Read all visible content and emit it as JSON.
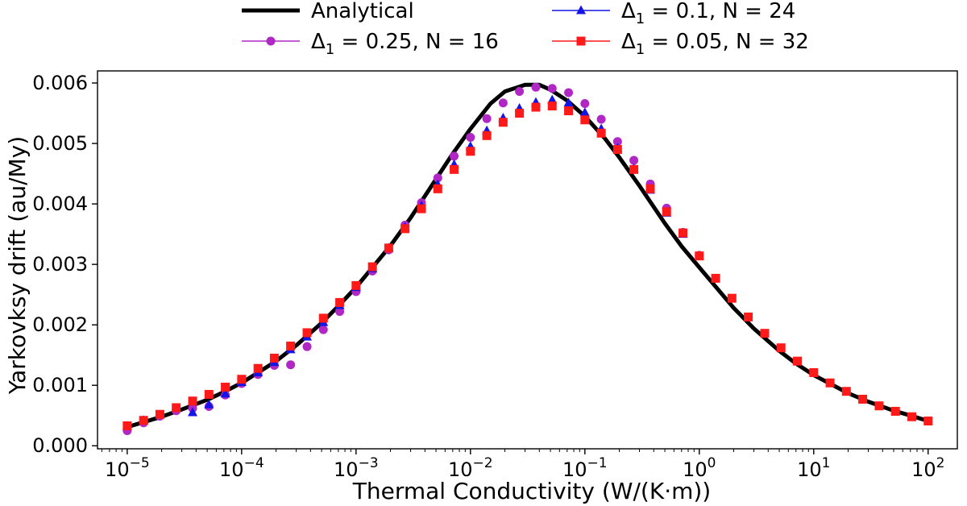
{
  "chart_data": {
    "type": "line",
    "xlabel": "Thermal Conductivity (W/(K·m))",
    "ylabel": "Yarkovksy drift (au/My)",
    "xscale": "log",
    "xlim": [
      5.5e-06,
      180
    ],
    "ylim": [
      -5e-05,
      0.0062
    ],
    "xticks": [
      {
        "value": 1e-05,
        "base": "10",
        "exp": "−5"
      },
      {
        "value": 0.0001,
        "base": "10",
        "exp": "−4"
      },
      {
        "value": 0.001,
        "base": "10",
        "exp": "−3"
      },
      {
        "value": 0.01,
        "base": "10",
        "exp": "−2"
      },
      {
        "value": 0.1,
        "base": "10",
        "exp": "−1"
      },
      {
        "value": 1,
        "base": "10",
        "exp": "0"
      },
      {
        "value": 10,
        "base": "10",
        "exp": "1"
      },
      {
        "value": 100,
        "base": "10",
        "exp": "2"
      }
    ],
    "yticks": [
      {
        "value": 0.0,
        "label": "0.000"
      },
      {
        "value": 0.001,
        "label": "0.001"
      },
      {
        "value": 0.002,
        "label": "0.002"
      },
      {
        "value": 0.003,
        "label": "0.003"
      },
      {
        "value": 0.004,
        "label": "0.004"
      },
      {
        "value": 0.005,
        "label": "0.005"
      },
      {
        "value": 0.006,
        "label": "0.006"
      }
    ],
    "grid": false,
    "legend_position": "top, above plot, two columns",
    "series": [
      {
        "name": "Analytical",
        "label_main": "Analytical",
        "label_sub": "",
        "label_rest": "",
        "kind": "line",
        "color": "#000000",
        "x": [
          1e-05,
          2e-05,
          3e-05,
          5e-05,
          7e-05,
          0.0001,
          0.0002,
          0.0003,
          0.0005,
          0.0007,
          0.001,
          0.002,
          0.003,
          0.005,
          0.007,
          0.01,
          0.015,
          0.02,
          0.03,
          0.04,
          0.05,
          0.07,
          0.1,
          0.15,
          0.2,
          0.3,
          0.5,
          0.7,
          1,
          2,
          3,
          5,
          7,
          10,
          20,
          30,
          50,
          70,
          100
        ],
        "y": [
          0.00031,
          0.00048,
          0.0006,
          0.00076,
          0.00089,
          0.00104,
          0.0014,
          0.00166,
          0.00203,
          0.00231,
          0.00262,
          0.00331,
          0.00377,
          0.00441,
          0.00483,
          0.00524,
          0.00566,
          0.00586,
          0.00597,
          0.00597,
          0.00589,
          0.00571,
          0.00545,
          0.00508,
          0.00477,
          0.0043,
          0.00368,
          0.0033,
          0.00295,
          0.00228,
          0.00194,
          0.00157,
          0.00136,
          0.00117,
          0.00087,
          0.00073,
          0.00058,
          0.0005,
          0.00041
        ]
      },
      {
        "name": "Δ₁ = 0.25, N = 16",
        "label_main": "Δ",
        "label_sub": "1",
        "label_rest": " = 0.25, N = 16",
        "kind": "circle",
        "color": "#b027c5",
        "x": [
          1e-05,
          1.39e-05,
          1.93e-05,
          2.68e-05,
          3.73e-05,
          5.18e-05,
          7.2e-05,
          0.0001,
          0.000139,
          0.000193,
          0.000268,
          0.000373,
          0.000518,
          0.00072,
          0.001,
          0.00139,
          0.00193,
          0.00268,
          0.00373,
          0.00518,
          0.0072,
          0.01,
          0.0139,
          0.0193,
          0.0268,
          0.0373,
          0.0518,
          0.072,
          0.1,
          0.139,
          0.193,
          0.268,
          0.373,
          0.518,
          0.72,
          1
        ],
        "y": [
          0.00025,
          0.00038,
          0.00049,
          0.00058,
          0.00062,
          0.00065,
          0.00084,
          0.00103,
          0.00118,
          0.00133,
          0.00134,
          0.00164,
          0.00192,
          0.00222,
          0.00255,
          0.00289,
          0.00324,
          0.00365,
          0.00402,
          0.00443,
          0.00479,
          0.0051,
          0.00541,
          0.00567,
          0.00586,
          0.00593,
          0.00591,
          0.00584,
          0.00566,
          0.0054,
          0.00503,
          0.00472,
          0.00433,
          0.00393,
          0.00353,
          0.00315
        ]
      },
      {
        "name": "Δ₁ = 0.1, N = 24",
        "label_main": "Δ",
        "label_sub": "1",
        "label_rest": " = 0.1, N = 24",
        "kind": "triangle",
        "color": "#1414e6",
        "x": [
          1e-05,
          1.39e-05,
          1.93e-05,
          2.68e-05,
          3.73e-05,
          5.18e-05,
          7.2e-05,
          0.0001,
          0.000139,
          0.000193,
          0.000268,
          0.000373,
          0.000518,
          0.00072,
          0.001,
          0.00139,
          0.00193,
          0.00268,
          0.00373,
          0.00518,
          0.0072,
          0.01,
          0.0139,
          0.0193,
          0.0268,
          0.0373,
          0.0518,
          0.072,
          0.1,
          0.139,
          0.193,
          0.268,
          0.373,
          0.518,
          0.72,
          1
        ],
        "y": [
          0.00032,
          0.00042,
          0.00051,
          0.00062,
          0.00055,
          0.00068,
          0.00086,
          0.00105,
          0.00121,
          0.00138,
          0.00159,
          0.0018,
          0.00204,
          0.00232,
          0.00262,
          0.00293,
          0.00327,
          0.00361,
          0.00397,
          0.00432,
          0.00465,
          0.00495,
          0.00521,
          0.00542,
          0.00558,
          0.00568,
          0.00572,
          0.00567,
          0.00551,
          0.00524,
          0.00492,
          0.00458,
          0.00423,
          0.00385,
          0.0035,
          0.00313
        ]
      },
      {
        "name": "Δ₁ = 0.05, N = 32",
        "label_main": "Δ",
        "label_sub": "1",
        "label_rest": " = 0.05, N = 32",
        "kind": "square",
        "color": "#ff1a1a",
        "x": [
          1e-05,
          1.39e-05,
          1.93e-05,
          2.68e-05,
          3.73e-05,
          5.18e-05,
          7.2e-05,
          0.0001,
          0.000139,
          0.000193,
          0.000268,
          0.000373,
          0.000518,
          0.00072,
          0.001,
          0.00139,
          0.00193,
          0.00268,
          0.00373,
          0.00518,
          0.0072,
          0.01,
          0.0139,
          0.0193,
          0.0268,
          0.0373,
          0.0518,
          0.072,
          0.1,
          0.139,
          0.193,
          0.268,
          0.373,
          0.518,
          0.72,
          1,
          1.39,
          1.93,
          2.68,
          3.73,
          5.18,
          7.2,
          10,
          13.9,
          19.3,
          26.8,
          37.3,
          51.8,
          72,
          100
        ],
        "y": [
          0.00033,
          0.00042,
          0.00052,
          0.00063,
          0.00074,
          0.00085,
          0.00097,
          0.0011,
          0.00128,
          0.00145,
          0.00165,
          0.00187,
          0.00211,
          0.00237,
          0.00265,
          0.00296,
          0.00327,
          0.00359,
          0.00392,
          0.00425,
          0.00457,
          0.00487,
          0.00513,
          0.00535,
          0.0055,
          0.0056,
          0.00562,
          0.00554,
          0.00539,
          0.00517,
          0.0049,
          0.00457,
          0.00425,
          0.00387,
          0.00352,
          0.00314,
          0.00277,
          0.00244,
          0.00213,
          0.00186,
          0.00162,
          0.0014,
          0.00121,
          0.00104,
          0.0009,
          0.00077,
          0.00066,
          0.00057,
          0.00048,
          0.00041
        ]
      }
    ]
  }
}
